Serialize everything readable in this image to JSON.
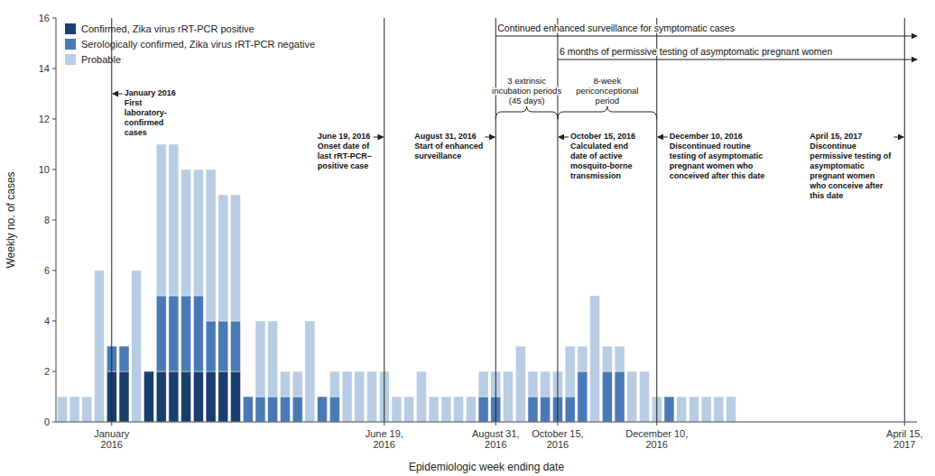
{
  "chart_data": {
    "type": "bar",
    "stacked": true,
    "xlabel": "Epidemiologic week ending date",
    "ylabel": "Weekly no. of cases",
    "x": [
      1,
      2,
      3,
      4,
      5,
      6,
      7,
      8,
      9,
      10,
      11,
      12,
      13,
      14,
      15,
      16,
      17,
      18,
      19,
      20,
      21,
      22,
      23,
      24,
      25,
      26,
      27,
      28,
      29,
      30,
      31,
      32,
      33,
      34,
      35,
      36,
      37,
      38,
      39,
      40,
      41,
      42,
      43,
      44,
      45,
      46,
      47,
      48,
      49,
      50,
      51,
      52,
      53,
      54,
      55
    ],
    "xlim": [
      0.5,
      70
    ],
    "xticks": [
      {
        "value": 5,
        "label": "January\n2016"
      },
      {
        "value": 27,
        "label": "June 19,\n2016"
      },
      {
        "value": 36,
        "label": "August 31,\n2016"
      },
      {
        "value": 41,
        "label": "October 15,\n2016"
      },
      {
        "value": 49,
        "label": "December 10,\n2016"
      },
      {
        "value": 69,
        "label": "April 15,\n2017"
      }
    ],
    "ylim": [
      0,
      16
    ],
    "yticks": [
      0,
      2,
      4,
      6,
      8,
      10,
      12,
      14,
      16
    ],
    "grid": false,
    "legend": "upper left",
    "series": [
      {
        "name": "Confirmed, Zika virus rRT-PCR positive",
        "color": "#1a3f6f",
        "values": [
          0,
          0,
          0,
          0,
          2,
          2,
          0,
          2,
          2,
          2,
          2,
          2,
          2,
          2,
          2,
          0,
          0,
          0,
          0,
          0,
          0,
          0,
          0,
          0,
          0,
          0,
          0,
          0,
          0,
          0,
          0,
          0,
          0,
          0,
          0,
          0,
          0,
          0,
          0,
          0,
          0,
          0,
          0,
          0,
          0,
          0,
          0,
          0,
          0,
          0,
          0,
          0,
          0,
          0,
          0
        ]
      },
      {
        "name": "Serologically confirmed, Zika virus rRT-PCR negative",
        "color": "#4a7ab5",
        "values": [
          0,
          0,
          0,
          0,
          1,
          1,
          0,
          0,
          3,
          3,
          3,
          3,
          2,
          2,
          2,
          1,
          1,
          1,
          1,
          1,
          0,
          1,
          1,
          0,
          0,
          0,
          0,
          0,
          0,
          0,
          0,
          0,
          0,
          0,
          1,
          1,
          0,
          0,
          1,
          1,
          1,
          1,
          2,
          0,
          2,
          2,
          0,
          0,
          0,
          1,
          0,
          0,
          0,
          0,
          0
        ]
      },
      {
        "name": "Probable",
        "color": "#b8cde4",
        "values": [
          1,
          1,
          1,
          6,
          0,
          0,
          6,
          0,
          6,
          6,
          5,
          5,
          6,
          5,
          5,
          0,
          3,
          3,
          1,
          1,
          4,
          0,
          1,
          2,
          2,
          2,
          2,
          1,
          1,
          2,
          1,
          1,
          1,
          1,
          1,
          1,
          2,
          3,
          1,
          1,
          1,
          2,
          1,
          5,
          1,
          1,
          2,
          2,
          1,
          0,
          1,
          1,
          1,
          1,
          1
        ]
      }
    ],
    "annotations": [
      {
        "text": "January 2016\nFirst\nlaboratory-\nconfirmed\ncases",
        "x": 5
      },
      {
        "text": "June 19, 2016\nOnset date of\nlast rRT-PCR–\npositive case",
        "x": 27
      },
      {
        "text": "August 31, 2016\nStart of enhanced\nsurveillance",
        "x": 36
      },
      {
        "text": "October 15, 2016\nCalculated end\ndate of active\nmosquito-borne\ntransmission",
        "x": 41
      },
      {
        "text": "December 10, 2016\nDiscontinued routine\ntesting of asymptomatic\npregnant women who\nconceived after this date",
        "x": 49
      },
      {
        "text": "April 15, 2017\nDiscontinue\npermissive testing of\nasymptomatic\npregnant women\nwho conceive after\nthis date",
        "x": 69
      }
    ],
    "range_arrows": [
      {
        "text": "Continued enhanced surveillance for symptomatic cases",
        "x": 36,
        "x_end": 70
      },
      {
        "text": "6 months of permissive testing of asymptomatic pregnant women",
        "x": 41,
        "x_end": 70
      }
    ],
    "braces": [
      {
        "text": "3 extrinsic\nincubation periods\n(45 days)",
        "x": 36,
        "x_end": 41
      },
      {
        "text": "8-week\npericonceptional\nperiod",
        "x": 41,
        "x_end": 49
      }
    ]
  }
}
